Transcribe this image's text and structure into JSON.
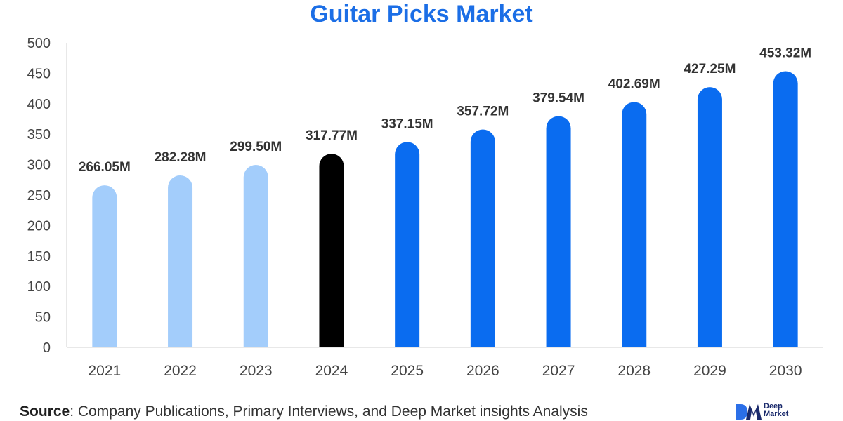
{
  "colors": {
    "title": "#1b6ee6",
    "historical": "#a3cdfb",
    "base_year": "#000000",
    "forecast": "#0a6cf0",
    "axis_text": "#444444",
    "grid": "#d0d0d0",
    "brand": "#1a2a6c"
  },
  "source": {
    "label": "Source",
    "text": ": Company Publications, Primary Interviews, and Deep Market insights Analysis"
  },
  "brand": {
    "line1": "Deep",
    "line2": "Market"
  },
  "chart_data": {
    "type": "bar",
    "title": "Guitar Picks Market",
    "xlabel": "",
    "ylabel": "",
    "ylim": [
      0,
      500
    ],
    "yticks": [
      0,
      50,
      100,
      150,
      200,
      250,
      300,
      350,
      400,
      450,
      500
    ],
    "categories": [
      "2021",
      "2022",
      "2023",
      "2024",
      "2025",
      "2026",
      "2027",
      "2028",
      "2029",
      "2030"
    ],
    "values": [
      266.05,
      282.28,
      299.5,
      317.77,
      337.15,
      357.72,
      379.54,
      402.69,
      427.25,
      453.32
    ],
    "data_labels": [
      "266.05M",
      "282.28M",
      "299.50M",
      "317.77M",
      "337.15M",
      "357.72M",
      "379.54M",
      "402.69M",
      "427.25M",
      "453.32M"
    ],
    "bar_groups": [
      "historical",
      "historical",
      "historical",
      "base_year",
      "forecast",
      "forecast",
      "forecast",
      "forecast",
      "forecast",
      "forecast"
    ],
    "grid": false,
    "legend": "none"
  }
}
